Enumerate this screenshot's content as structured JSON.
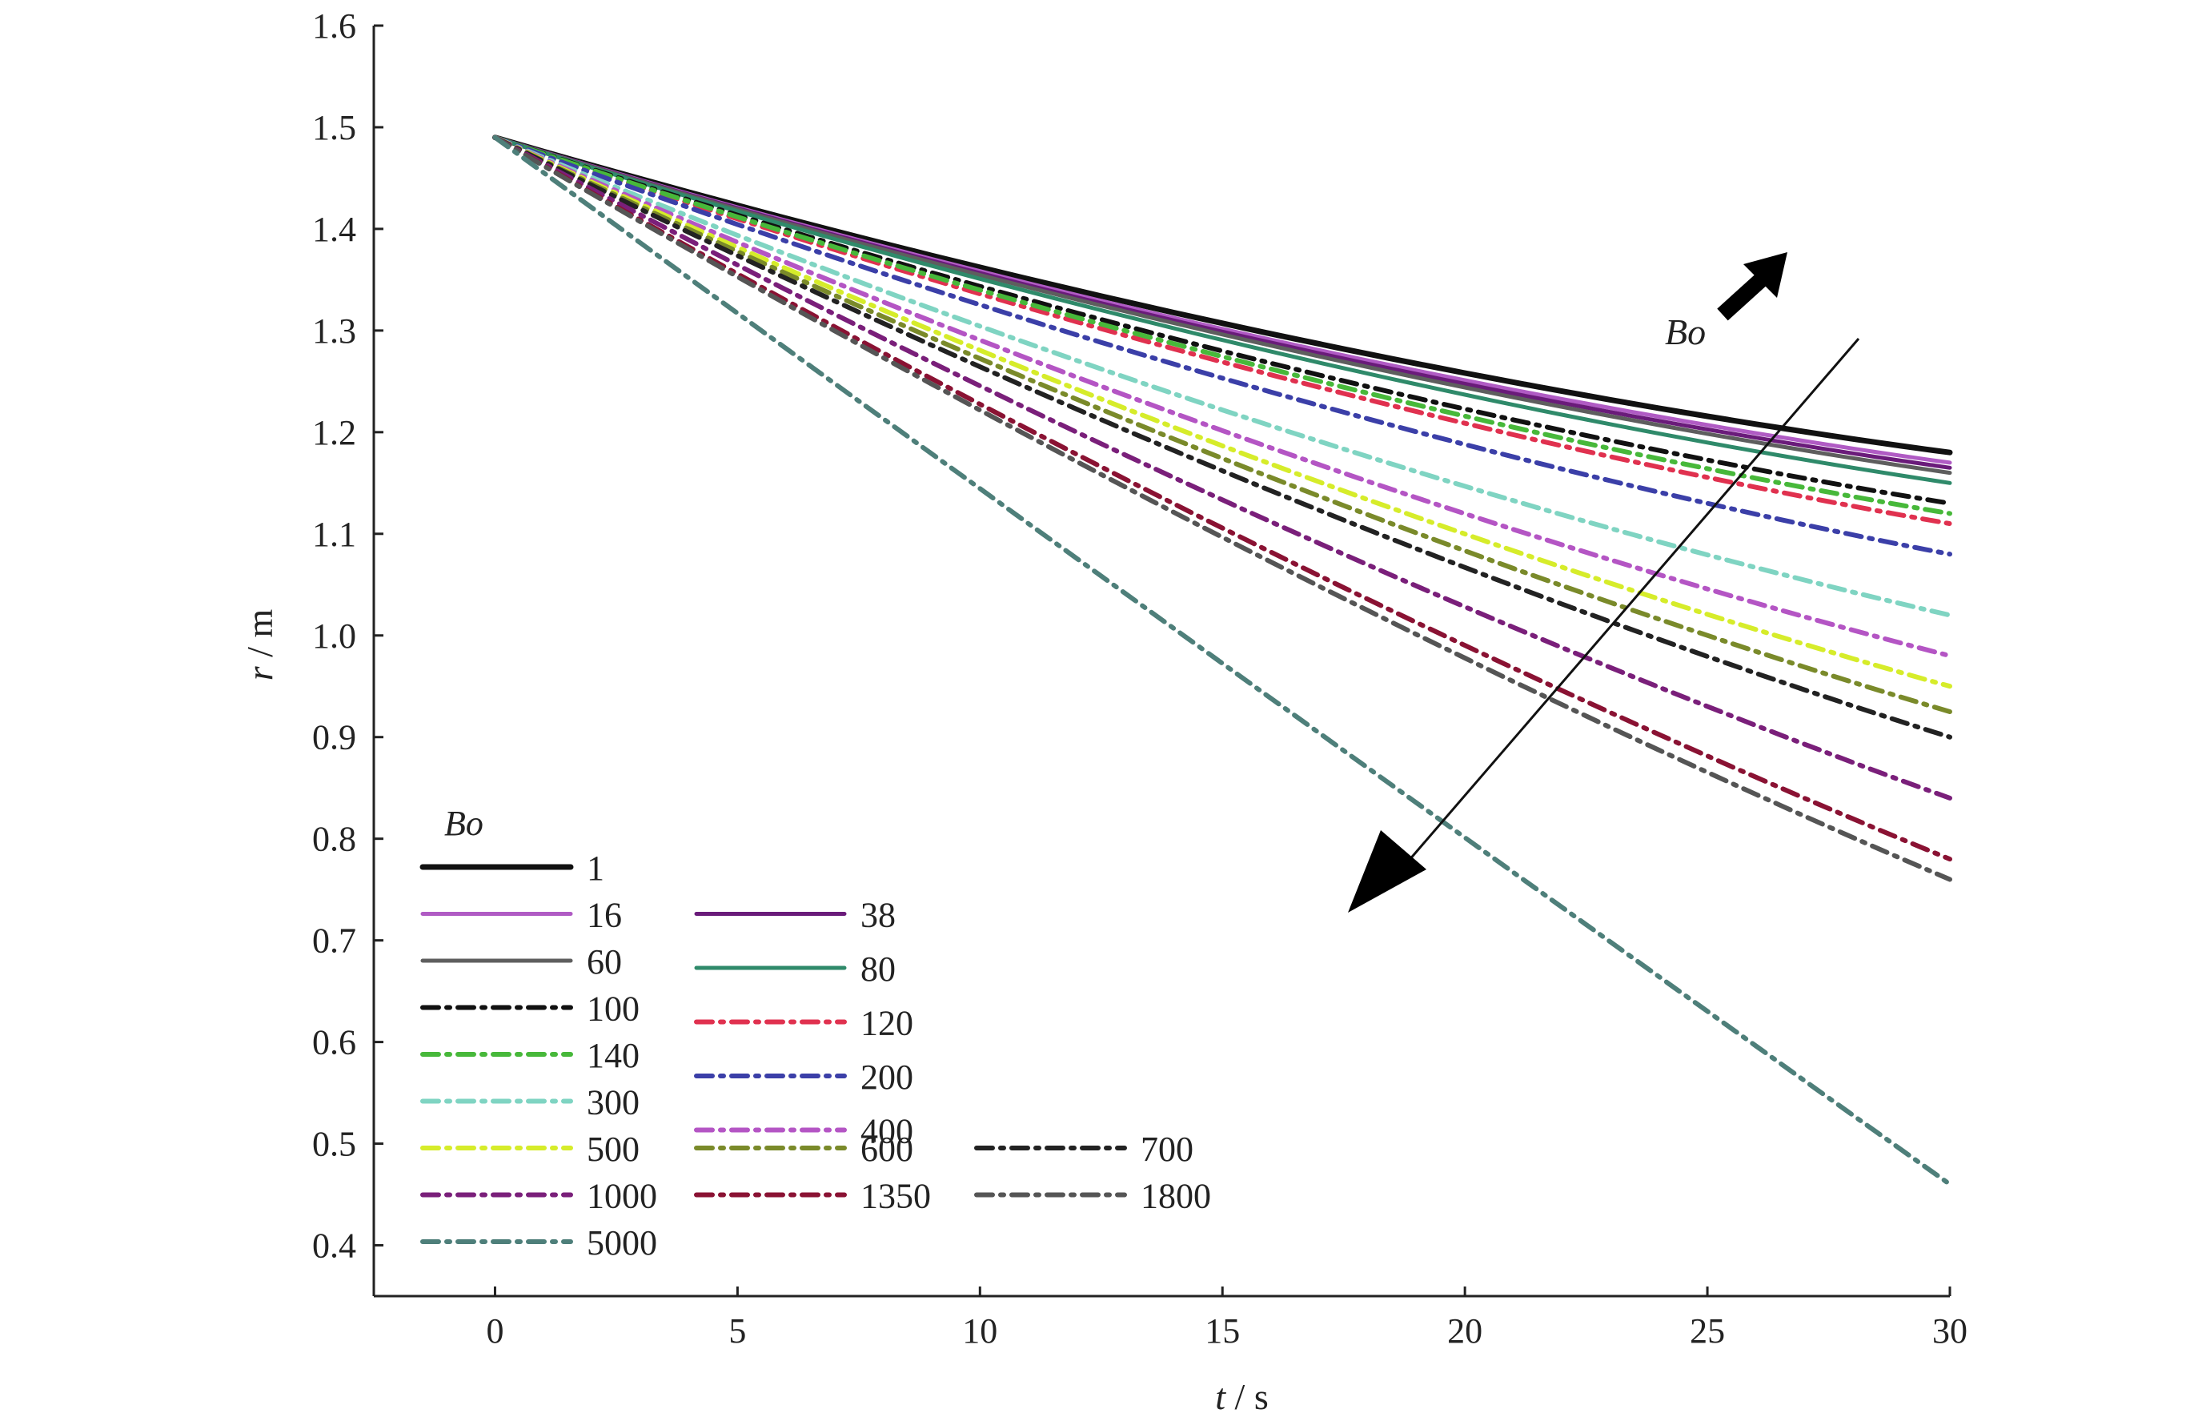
{
  "chart_data": {
    "type": "line",
    "xlabel_var": "t",
    "xlabel_unit": " / s",
    "ylabel_var": "r",
    "ylabel_unit": " / m",
    "xlim": [
      -2.5,
      30
    ],
    "ylim": [
      0.35,
      1.6
    ],
    "xticks": [
      0,
      5,
      10,
      15,
      20,
      25,
      30
    ],
    "yticks": [
      0.4,
      0.5,
      0.6,
      0.7,
      0.8,
      0.9,
      1.0,
      1.1,
      1.2,
      1.3,
      1.4,
      1.5,
      1.6
    ],
    "grid": false,
    "legend_title": "Bo",
    "legend_placement": "bottom-left",
    "annotation_label": "Bo",
    "x": [
      0,
      30
    ],
    "series": [
      {
        "name": "1",
        "color": "#111111",
        "style": "solid",
        "values": [
          1.49,
          1.18
        ]
      },
      {
        "name": "16",
        "color": "#b05bc4",
        "style": "solid",
        "values": [
          1.49,
          1.17
        ]
      },
      {
        "name": "38",
        "color": "#6a1b7a",
        "style": "solid",
        "values": [
          1.49,
          1.165
        ]
      },
      {
        "name": "60",
        "color": "#5e5e5e",
        "style": "solid",
        "values": [
          1.49,
          1.16
        ]
      },
      {
        "name": "80",
        "color": "#2f8a6a",
        "style": "solid",
        "values": [
          1.49,
          1.15
        ]
      },
      {
        "name": "100",
        "color": "#111111",
        "style": "dashdot",
        "values": [
          1.49,
          1.13
        ]
      },
      {
        "name": "120",
        "color": "#e0314f",
        "style": "dashdot",
        "values": [
          1.49,
          1.11
        ]
      },
      {
        "name": "140",
        "color": "#47b83a",
        "style": "dashdot",
        "values": [
          1.49,
          1.12
        ]
      },
      {
        "name": "200",
        "color": "#3b3fa8",
        "style": "dashdot",
        "values": [
          1.49,
          1.08
        ]
      },
      {
        "name": "300",
        "color": "#7fd4c2",
        "style": "dashdot",
        "values": [
          1.49,
          1.02
        ]
      },
      {
        "name": "400",
        "color": "#b455c4",
        "style": "dashdot",
        "values": [
          1.49,
          0.98
        ]
      },
      {
        "name": "500",
        "color": "#d6ec2a",
        "style": "dashdot",
        "values": [
          1.49,
          0.95
        ]
      },
      {
        "name": "600",
        "color": "#7a8a2a",
        "style": "dashdot",
        "values": [
          1.49,
          0.925
        ]
      },
      {
        "name": "700",
        "color": "#222222",
        "style": "dashdot",
        "values": [
          1.49,
          0.9
        ]
      },
      {
        "name": "1000",
        "color": "#7a1f7a",
        "style": "dashdot",
        "values": [
          1.49,
          0.84
        ]
      },
      {
        "name": "1350",
        "color": "#8a1233",
        "style": "dashdot",
        "values": [
          1.49,
          0.78
        ]
      },
      {
        "name": "1800",
        "color": "#555555",
        "style": "dashdot",
        "values": [
          1.49,
          0.76
        ]
      },
      {
        "name": "5000",
        "color": "#4e7f7a",
        "style": "dashdot",
        "values": [
          1.49,
          0.46
        ]
      }
    ],
    "legend_layout": [
      [
        "1"
      ],
      [
        "16",
        "38"
      ],
      [
        "60",
        "80"
      ],
      [
        "100",
        "120"
      ],
      [
        "140",
        "200"
      ],
      [
        "300",
        "400"
      ],
      [
        "500",
        "600",
        "700"
      ],
      [
        "1000",
        "1350",
        "1800"
      ],
      [
        "5000"
      ]
    ]
  }
}
